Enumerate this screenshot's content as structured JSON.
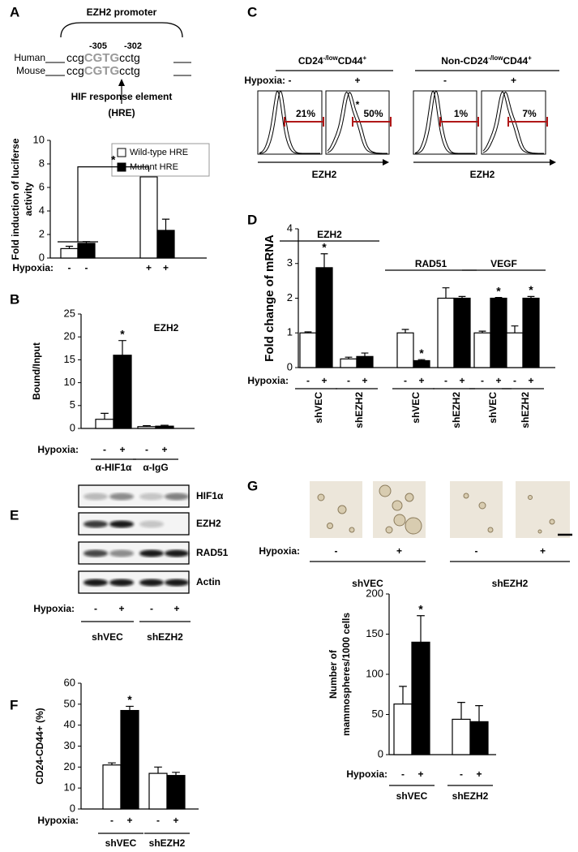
{
  "promoter": {
    "panel": "A",
    "title": "EZH2 promoter",
    "positions": [
      "-305",
      "-302"
    ],
    "rows": [
      {
        "species": "Human",
        "seq": [
          "ccg",
          "CGTG",
          "cctg"
        ]
      },
      {
        "species": "Mouse",
        "seq": [
          "ccg",
          "CGTG",
          "cctg"
        ]
      }
    ],
    "element": "HIF response element",
    "element_abbr": "(HRE)"
  },
  "flow": {
    "panel": "C",
    "row_label": "Hypoxia:",
    "xlabel": "EZH2",
    "groups": [
      {
        "label": [
          "CD24",
          "-/low",
          "CD44",
          "+"
        ],
        "panels": [
          {
            "hypoxia": "-",
            "percent": 21,
            "percent_label": "21%"
          },
          {
            "hypoxia": "+",
            "percent": 50,
            "percent_label": "50%",
            "note": "*"
          }
        ]
      },
      {
        "label": [
          "Non-CD24",
          "-/low",
          "CD44",
          "+"
        ],
        "panels": [
          {
            "hypoxia": "-",
            "percent": 1,
            "percent_label": "1%"
          },
          {
            "hypoxia": "+",
            "percent": 7,
            "percent_label": "7%"
          }
        ]
      }
    ]
  },
  "blot": {
    "panel": "E",
    "rows": [
      "HIF1α",
      "EZH2",
      "RAD51",
      "Actin"
    ],
    "row_label": "Hypoxia:",
    "lanes": [
      "-",
      "+",
      "-",
      "+"
    ],
    "groups": [
      "shVEC",
      "shEZH2"
    ]
  },
  "spheres": {
    "panel": "G",
    "row_label": "Hypoxia:",
    "lanes": [
      "-",
      "+",
      "-",
      "+"
    ],
    "groups": [
      "shVEC",
      "shEZH2"
    ]
  },
  "chart_data": [
    {
      "type": "bar",
      "ylabel": [
        "Fold induction of luciferse",
        "activity"
      ],
      "ylim": [
        0,
        10
      ],
      "yticks": [
        0,
        2,
        4,
        6,
        8,
        10
      ],
      "categories": [
        "-",
        "+"
      ],
      "row_label": "Hypoxia:",
      "legend": "top-right",
      "bracket_label": "*",
      "series": [
        {
          "name": "Wild-type HRE",
          "color": "#ffffff",
          "values": [
            0.8,
            6.9
          ],
          "errors": [
            0.2,
            0.3
          ]
        },
        {
          "name": "Mutant HRE",
          "color": "#000000",
          "values": [
            1.25,
            2.35
          ],
          "errors": [
            0.15,
            0.95
          ]
        }
      ]
    },
    {
      "type": "bar",
      "panel": "B",
      "title": "EZH2",
      "ylabel": [
        "Bound/Input"
      ],
      "ylim": [
        0,
        25
      ],
      "yticks": [
        0,
        5,
        10,
        15,
        20,
        25
      ],
      "categories": [
        "α-HIF1α",
        "α-IgG"
      ],
      "row_label": "Hypoxia:",
      "series": [
        {
          "name": "-",
          "color": "#ffffff",
          "values": [
            2,
            0.4
          ],
          "errors": [
            1.3,
            0.2
          ]
        },
        {
          "name": "+",
          "color": "#000000",
          "values": [
            16,
            0.5
          ],
          "errors": [
            3.2,
            0.2
          ],
          "notes": [
            "*",
            null
          ]
        }
      ]
    },
    {
      "type": "bar",
      "panel": "D",
      "ylabel": [
        "Fold change of mRNA"
      ],
      "ylim": [
        0,
        4
      ],
      "yticks": [
        0,
        1,
        2,
        3,
        4
      ],
      "categories": [
        "shVEC",
        "shEZH2",
        "shVEC",
        "shEZH2",
        "shVEC",
        "shEZH2"
      ],
      "genes": [
        "EZH2",
        "RAD51",
        "VEGF"
      ],
      "row_label": "Hypoxia:",
      "series": [
        {
          "name": "-",
          "color": "#ffffff",
          "values": [
            1.0,
            0.25,
            1.0,
            2.0,
            1.0,
            1.0
          ],
          "errors": [
            0.03,
            0.05,
            0.1,
            0.3,
            0.05,
            0.2
          ]
        },
        {
          "name": "+",
          "color": "#000000",
          "values": [
            2.88,
            0.32,
            0.2,
            2.0,
            2.0,
            2.0
          ],
          "errors": [
            0.4,
            0.1,
            0.03,
            0.05,
            0.02,
            0.05
          ],
          "notes": [
            "*",
            null,
            "*",
            null,
            "*",
            "*"
          ]
        }
      ]
    },
    {
      "type": "bar",
      "panel": "F",
      "ylabel": [
        "CD24-CD44+ (%)"
      ],
      "ylim": [
        0,
        60
      ],
      "yticks": [
        0,
        10,
        20,
        30,
        40,
        50,
        60
      ],
      "categories": [
        "shVEC",
        "shEZH2"
      ],
      "row_label": "Hypoxia:",
      "series": [
        {
          "name": "-",
          "color": "#ffffff",
          "values": [
            21,
            17
          ],
          "errors": [
            1,
            3
          ]
        },
        {
          "name": "+",
          "color": "#000000",
          "values": [
            47,
            16
          ],
          "errors": [
            2,
            1.5
          ],
          "notes": [
            "*",
            null
          ]
        }
      ]
    },
    {
      "type": "bar",
      "ylabel": [
        "Number of",
        "mammospheres/1000 cells"
      ],
      "ylim": [
        0,
        200
      ],
      "yticks": [
        0,
        50,
        100,
        150,
        200
      ],
      "categories": [
        "shVEC",
        "shEZH2"
      ],
      "row_label": "Hypoxia:",
      "series": [
        {
          "name": "-",
          "color": "#ffffff",
          "values": [
            63,
            44
          ],
          "errors": [
            22,
            21
          ]
        },
        {
          "name": "+",
          "color": "#000000",
          "values": [
            140,
            41
          ],
          "errors": [
            33,
            20
          ],
          "notes": [
            "*",
            null
          ]
        }
      ]
    }
  ]
}
